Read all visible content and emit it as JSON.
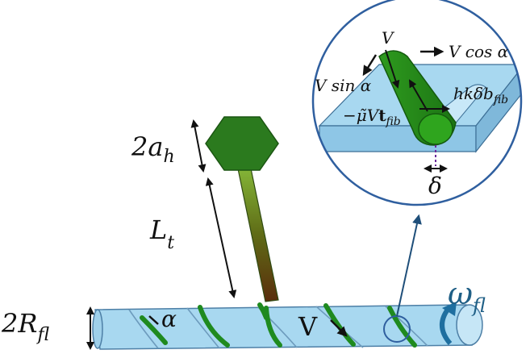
{
  "labels": {
    "hex_size": "2a",
    "hex_size_sub": "h",
    "tail_length": "L",
    "tail_length_sub": "t",
    "radius": "2R",
    "radius_sub": "fl",
    "alpha": "α",
    "velocity": "V",
    "omega": "ω",
    "omega_sub": "fl",
    "delta": "δ"
  },
  "inset": {
    "velocity": "V",
    "v_cos_alpha": "V cos α",
    "v_sin_alpha": "V sin α",
    "force_normal": "hkδb",
    "force_normal_sub": "fib",
    "friction_prefix": "−μ̃V",
    "friction_t": "t",
    "friction_sub": "fib",
    "delta": "δ"
  },
  "colors": {
    "filament": "#a8d8f0",
    "filament_stroke": "#4d7fa6",
    "fiber_green": "#1f8a1f",
    "hexagon": "#2b7a1e",
    "tail_top": "#7fbf2a",
    "tail_bottom": "#5a2d0c",
    "circle_stroke": "#2f5f9f",
    "pointer_line": "#1f4f7a",
    "omega_color": "#1f5f86"
  },
  "icons": {
    "double_arrow": "double-arrow-icon",
    "rotation": "rotation-arrow-icon"
  }
}
